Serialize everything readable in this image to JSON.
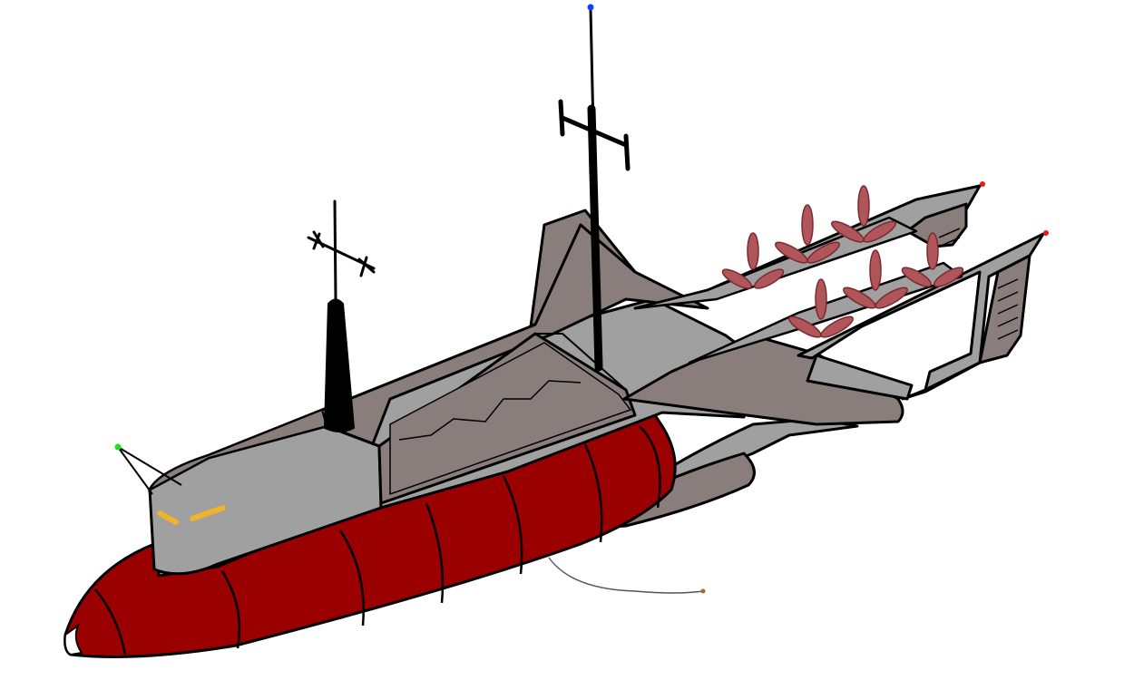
{
  "drawing": {
    "subject": "submarine-airship",
    "palette": {
      "background": "#ffffff",
      "outline": "#000000",
      "hull_grey": "#a0a0a0",
      "deck_taupe": "#8a7e7c",
      "balloon_red": "#9b0000",
      "propeller_pink": "#b0555a",
      "headlight_amber": "#f2b22a",
      "nav_light_green": "#22dd22",
      "nav_light_blue": "#1040ff",
      "nav_light_red": "#ff1010",
      "tether_brown": "#a06a30"
    }
  }
}
